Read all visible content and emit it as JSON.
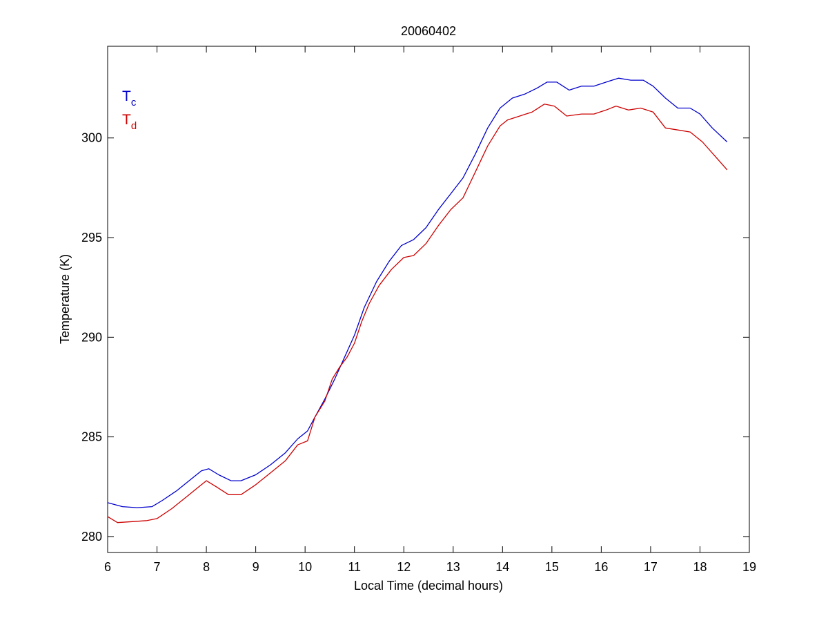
{
  "chart_data": {
    "type": "line",
    "title": "20060402",
    "xlabel": "Local Time (decimal hours)",
    "ylabel": "Temperature (K)",
    "xlim": [
      6,
      19
    ],
    "ylim": [
      279.2,
      304.6
    ],
    "xticks": [
      6,
      7,
      8,
      9,
      10,
      11,
      12,
      13,
      14,
      15,
      16,
      17,
      18,
      19
    ],
    "yticks": [
      280,
      285,
      290,
      295,
      300
    ],
    "grid": false,
    "legend_position": "top-left",
    "series": [
      {
        "name": "Tc",
        "label_base": "T",
        "label_sub": "c",
        "color": "#0000cc",
        "x": [
          6.0,
          6.3,
          6.6,
          6.9,
          7.1,
          7.4,
          7.7,
          7.9,
          8.05,
          8.25,
          8.5,
          8.7,
          9.0,
          9.3,
          9.6,
          9.85,
          10.05,
          10.2,
          10.4,
          10.6,
          10.8,
          11.0,
          11.2,
          11.45,
          11.7,
          11.95,
          12.2,
          12.45,
          12.7,
          12.95,
          13.2,
          13.45,
          13.7,
          13.95,
          14.2,
          14.45,
          14.7,
          14.9,
          15.1,
          15.35,
          15.6,
          15.85,
          16.1,
          16.35,
          16.6,
          16.85,
          17.05,
          17.3,
          17.55,
          17.8,
          18.0,
          18.25,
          18.55
        ],
        "y": [
          281.7,
          281.5,
          281.45,
          281.5,
          281.8,
          282.3,
          282.9,
          283.3,
          283.4,
          283.1,
          282.8,
          282.8,
          283.1,
          283.6,
          284.2,
          284.9,
          285.3,
          286.0,
          286.9,
          287.9,
          289.0,
          290.1,
          291.5,
          292.8,
          293.8,
          294.6,
          294.9,
          295.5,
          296.4,
          297.2,
          298.0,
          299.2,
          300.5,
          301.5,
          302.0,
          302.2,
          302.5,
          302.8,
          302.8,
          302.4,
          302.6,
          302.6,
          302.8,
          303.0,
          302.9,
          302.9,
          302.6,
          302.0,
          301.5,
          301.5,
          301.2,
          300.5,
          299.8
        ]
      },
      {
        "name": "Td",
        "label_base": "T",
        "label_sub": "d",
        "color": "#cc0000",
        "x": [
          6.0,
          6.2,
          6.5,
          6.8,
          7.0,
          7.3,
          7.6,
          7.85,
          8.0,
          8.2,
          8.45,
          8.7,
          9.0,
          9.3,
          9.6,
          9.85,
          10.05,
          10.2,
          10.4,
          10.55,
          10.7,
          10.85,
          11.0,
          11.15,
          11.3,
          11.5,
          11.75,
          12.0,
          12.2,
          12.45,
          12.7,
          12.95,
          13.2,
          13.45,
          13.7,
          13.95,
          14.1,
          14.35,
          14.6,
          14.85,
          15.05,
          15.3,
          15.6,
          15.85,
          16.1,
          16.3,
          16.55,
          16.8,
          17.05,
          17.3,
          17.55,
          17.8,
          18.05,
          18.3,
          18.55
        ],
        "y": [
          281.0,
          280.7,
          280.75,
          280.8,
          280.9,
          281.4,
          282.0,
          282.5,
          282.8,
          282.5,
          282.1,
          282.1,
          282.6,
          283.2,
          283.8,
          284.6,
          284.8,
          286.0,
          286.8,
          287.9,
          288.5,
          289.0,
          289.7,
          290.8,
          291.7,
          292.6,
          293.4,
          294.0,
          294.1,
          294.7,
          295.6,
          296.4,
          297.0,
          298.3,
          299.6,
          300.6,
          300.9,
          301.1,
          301.3,
          301.7,
          301.6,
          301.1,
          301.2,
          301.2,
          301.4,
          301.6,
          301.4,
          301.5,
          301.3,
          300.5,
          300.4,
          300.3,
          299.8,
          299.1,
          298.4
        ]
      }
    ]
  }
}
